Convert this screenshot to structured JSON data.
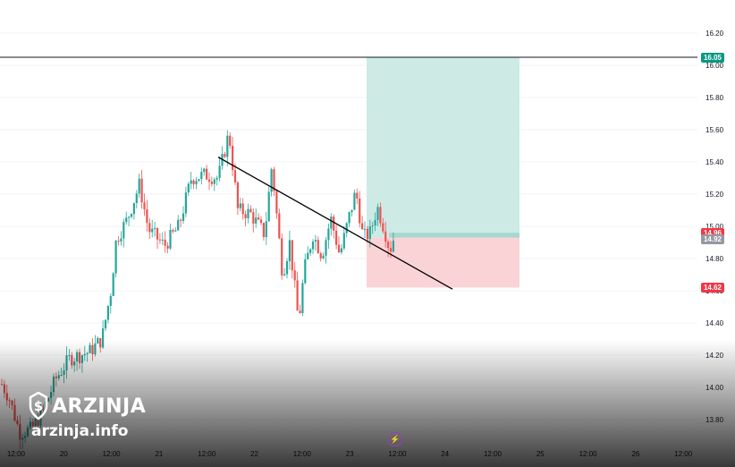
{
  "chart_data": {
    "type": "candlestick",
    "title": "",
    "y_axis": {
      "ticks": [
        16.2,
        16.0,
        15.8,
        15.6,
        15.4,
        15.2,
        15.0,
        14.8,
        14.6,
        14.4,
        14.2,
        14.0,
        13.8
      ],
      "range": [
        13.62,
        16.38
      ]
    },
    "x_axis": {
      "tick_labels": [
        "12:00",
        "20",
        "12:00",
        "21",
        "12:00",
        "22",
        "12:00",
        "23",
        "12:00",
        "24",
        "12:00",
        "25",
        "12:00",
        "26",
        "12:00"
      ]
    },
    "price_tags": [
      {
        "value": 16.05,
        "label": "16.05",
        "color": "#089981"
      },
      {
        "value": 14.96,
        "label": "14.96",
        "color": "#f23645"
      },
      {
        "value": 14.92,
        "label": "14.92",
        "color": "#9598a1"
      },
      {
        "value": 14.62,
        "label": "14.62",
        "color": "#f23645"
      }
    ],
    "horizontal_line": 16.05,
    "position_tool": {
      "entry": 14.93,
      "target": 16.05,
      "stop": 14.62,
      "current": 14.96,
      "profit_color": "#cdeae5",
      "loss_color": "#fad3d7"
    },
    "trendline": {
      "start_price": 15.43,
      "end_price": 14.61
    },
    "colors": {
      "up": "#26a69a",
      "down": "#ef5350",
      "grid": "#f0f3fa"
    }
  },
  "watermark": {
    "brand": "ARZINJA",
    "url": "arzinja.info",
    "logo_icon": "dollar-shield-icon"
  },
  "toolbar": {
    "replay_icon": "lightning-icon",
    "replay_glyph": "⚡"
  }
}
